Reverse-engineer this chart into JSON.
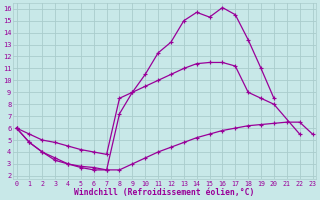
{
  "background_color": "#c8e8e8",
  "line_color": "#990099",
  "grid_color": "#aacccc",
  "xlabel": "Windchill (Refroidissement éolien,°C)",
  "xlim": [
    -0.3,
    23.3
  ],
  "ylim": [
    1.7,
    16.5
  ],
  "xtick_vals": [
    0,
    1,
    2,
    3,
    4,
    5,
    6,
    7,
    8,
    9,
    10,
    11,
    12,
    13,
    14,
    15,
    16,
    17,
    18,
    19,
    20,
    21,
    22,
    23
  ],
  "ytick_vals": [
    2,
    3,
    4,
    5,
    6,
    7,
    8,
    9,
    10,
    11,
    12,
    13,
    14,
    15,
    16
  ],
  "line1_x": [
    0,
    1,
    2,
    3,
    4,
    5,
    6,
    7,
    8,
    9,
    10,
    11,
    12,
    13,
    14,
    15,
    16,
    17,
    18,
    19,
    20
  ],
  "line1_y": [
    6.0,
    4.8,
    4.0,
    3.3,
    3.0,
    2.7,
    2.5,
    2.5,
    7.2,
    9.0,
    10.5,
    12.3,
    13.2,
    15.0,
    15.7,
    15.3,
    16.1,
    15.5,
    13.4,
    11.0,
    8.5
  ],
  "line2_x": [
    0,
    1,
    2,
    3,
    4,
    5,
    6,
    7,
    8,
    9,
    10,
    11,
    12,
    13,
    14,
    15,
    16,
    17,
    18,
    19,
    20,
    22
  ],
  "line2_y": [
    6.0,
    5.5,
    5.0,
    4.8,
    4.5,
    4.2,
    4.0,
    3.8,
    8.5,
    9.0,
    9.5,
    10.0,
    10.5,
    11.0,
    11.4,
    11.5,
    11.5,
    11.2,
    9.0,
    8.5,
    8.0,
    5.5
  ],
  "line3_x": [
    0,
    1,
    2,
    3,
    4,
    5,
    6,
    7,
    8,
    9,
    10,
    11,
    12,
    13,
    14,
    15,
    16,
    17,
    18,
    19,
    20,
    21,
    22,
    23
  ],
  "line3_y": [
    6.0,
    4.8,
    4.0,
    3.5,
    3.0,
    2.8,
    2.7,
    2.5,
    2.5,
    3.0,
    3.5,
    4.0,
    4.4,
    4.8,
    5.2,
    5.5,
    5.8,
    6.0,
    6.2,
    6.3,
    6.4,
    6.5,
    6.5,
    5.5
  ]
}
